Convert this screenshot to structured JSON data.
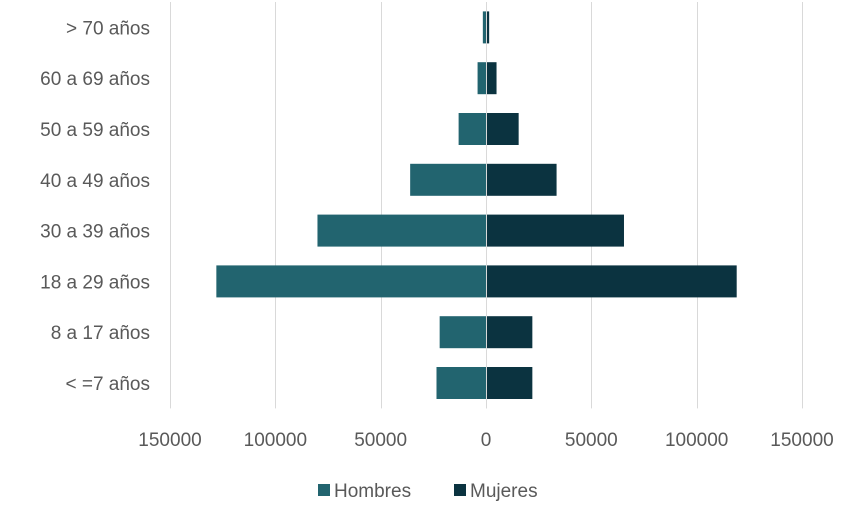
{
  "chart_data": {
    "type": "bar",
    "orientation": "horizontal-diverging",
    "title": "",
    "xlabel": "",
    "ylabel": "",
    "categories": [
      "> 70 años",
      "60 a 69 años",
      "50 a 59 años",
      "40 a 49 años",
      "30 a 39 años",
      "18 a 29 años",
      "8 a 17 años",
      "< =7 años"
    ],
    "series": [
      {
        "name": "Hombres",
        "color": "#22646f",
        "values": [
          -1500,
          -4000,
          -13000,
          -36000,
          -80000,
          -128000,
          -22000,
          -23500
        ]
      },
      {
        "name": "Mujeres",
        "color": "#0b3340",
        "values": [
          1500,
          5000,
          15500,
          33500,
          65500,
          119000,
          22000,
          22000
        ]
      }
    ],
    "xlim": [
      -150000,
      150000
    ],
    "xticks": [
      -150000,
      -100000,
      -50000,
      0,
      50000,
      100000,
      150000
    ],
    "xtick_labels": [
      "150000",
      "100000",
      "50000",
      "0",
      "50000",
      "100000",
      "150000"
    ],
    "grid": true,
    "legend_position": "bottom"
  }
}
